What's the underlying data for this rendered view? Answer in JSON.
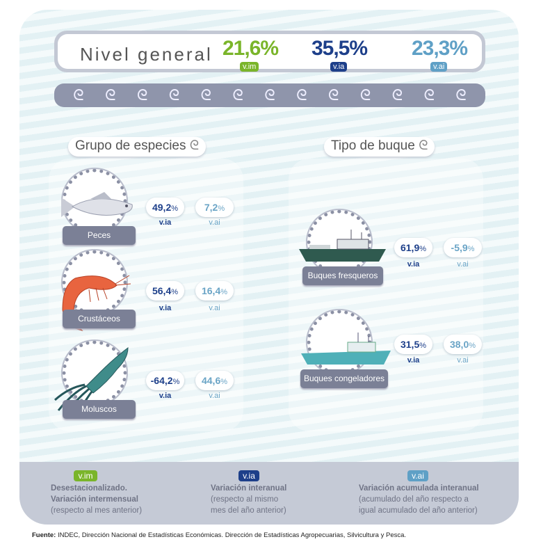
{
  "colors": {
    "vim": "#7ab52a",
    "via": "#1d3f8a",
    "vai": "#5fa0c6",
    "label_bg": "#7b8096"
  },
  "header": {
    "title": "Nivel general",
    "vim_value": "21,6%",
    "vim_tag": "v.im",
    "via_value": "35,5%",
    "via_tag": "v.ia",
    "vai_value": "23,3%",
    "vai_tag": "v.ai"
  },
  "sections": {
    "species": "Grupo de especies",
    "vessel": "Tipo de buque"
  },
  "species": [
    {
      "name": "Peces",
      "icon": "fish-icon",
      "via": "49,2",
      "vai": "7,2"
    },
    {
      "name": "Crustáceos",
      "icon": "shrimp-icon",
      "via": "56,4",
      "vai": "16,4"
    },
    {
      "name": "Moluscos",
      "icon": "squid-icon",
      "via": "-64,2",
      "vai": "44,6"
    }
  ],
  "vessels": [
    {
      "name": "Buques fresqueros",
      "icon": "fishing-boat-icon",
      "via": "61,9",
      "vai": "-5,9"
    },
    {
      "name": "Buques congeladores",
      "icon": "freezer-boat-icon",
      "via": "31,5",
      "vai": "38,0"
    }
  ],
  "units": {
    "pct": "%",
    "via": "v.ia",
    "vai": "v.ai"
  },
  "legend": [
    {
      "tag": "v.im",
      "line1": "Desestacionalizado.",
      "line2": "Variación intermensual",
      "line3": "(respecto al mes anterior)"
    },
    {
      "tag": "v.ia",
      "line1": "Variación interanual",
      "line2": "(respecto al mismo",
      "line3": "mes del año anterior)"
    },
    {
      "tag": "v.ai",
      "line1": "Variación acumulada interanual",
      "line2": "(acumulado del año respecto a",
      "line3": "igual acumulado del año anterior)"
    }
  ],
  "source": {
    "label": "Fuente:",
    "text": " INDEC, Dirección Nacional de Estadísticas Económicas. Dirección de Estadísticas Agropecuarias, Silvicultura y Pesca."
  }
}
